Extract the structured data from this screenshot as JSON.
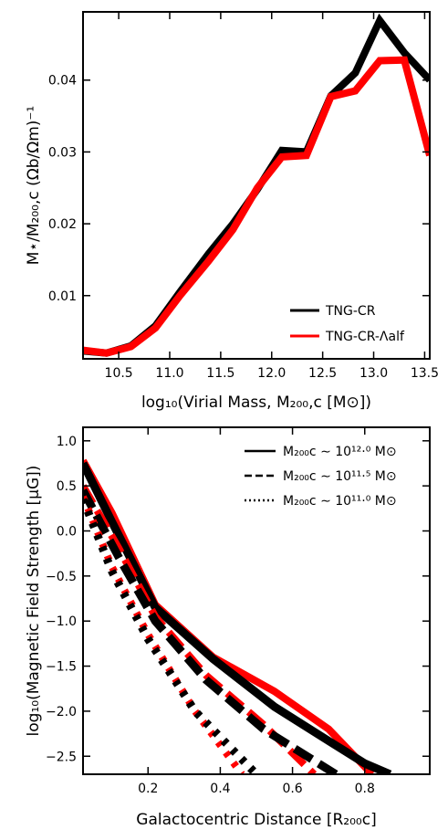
{
  "chart_data": [
    {
      "type": "line",
      "xlabel": "log₁₀(Virial Mass, M₂₀₀,c [M⊙])",
      "ylabel": "M⋆/M₂₀₀,c (Ωb/Ωm)⁻¹",
      "xlim": [
        10.15,
        13.55
      ],
      "ylim": [
        0.0012,
        0.0495
      ],
      "xticks": [
        "10.5",
        "11.0",
        "11.5",
        "12.0",
        "12.5",
        "13.0",
        "13.5"
      ],
      "yticks": [
        "0.01",
        "0.02",
        "0.03",
        "0.04"
      ],
      "legend_position": "lower-right",
      "grid": false,
      "series": [
        {
          "name": "TNG-CR",
          "color": "#000000",
          "x": [
            10.15,
            10.38,
            10.62,
            10.86,
            11.1,
            11.38,
            11.62,
            11.86,
            12.1,
            12.34,
            12.58,
            12.82,
            13.06,
            13.3,
            13.55
          ],
          "y": [
            0.0023,
            0.002,
            0.003,
            0.0058,
            0.0105,
            0.0158,
            0.02,
            0.0248,
            0.0302,
            0.03,
            0.0378,
            0.041,
            0.0483,
            0.0438,
            0.04
          ]
        },
        {
          "name": "TNG-CR-Λalf",
          "color": "#ff0000",
          "x": [
            10.15,
            10.38,
            10.62,
            10.86,
            11.1,
            11.38,
            11.62,
            11.86,
            12.1,
            12.34,
            12.58,
            12.82,
            13.06,
            13.3,
            13.55
          ],
          "y": [
            0.0024,
            0.002,
            0.0029,
            0.0055,
            0.01,
            0.0148,
            0.0192,
            0.025,
            0.0293,
            0.0295,
            0.0377,
            0.0385,
            0.0427,
            0.0428,
            0.0295
          ]
        }
      ]
    },
    {
      "type": "line",
      "xlabel": "Galactocentric Distance [R₂₀₀c]",
      "ylabel": "log₁₀(Magnetic Field Strength [μG])",
      "xlim": [
        0.02,
        0.98
      ],
      "ylim": [
        -2.7,
        1.15
      ],
      "xticks": [
        "0.2",
        "0.4",
        "0.6",
        "0.8"
      ],
      "yticks": [
        "1.0",
        "0.5",
        "0.0",
        "−0.5",
        "−1.0",
        "−1.5",
        "−2.0",
        "−2.5"
      ],
      "legend_position": "top-right",
      "grid": false,
      "legend": [
        {
          "label": "M₂₀₀c ∼ 10¹²·⁰ M⊙",
          "style": "solid"
        },
        {
          "label": "M₂₀₀c ∼ 10¹¹·⁵ M⊙",
          "style": "dashed"
        },
        {
          "label": "M₂₀₀c ∼ 10¹¹·⁰ M⊙",
          "style": "dotted"
        }
      ],
      "series": [
        {
          "color": "#ff0000",
          "style": "solid",
          "x": [
            0.02,
            0.1,
            0.22,
            0.38,
            0.55,
            0.7,
            0.82
          ],
          "y": [
            0.78,
            0.2,
            -0.82,
            -1.4,
            -1.78,
            -2.2,
            -2.7
          ]
        },
        {
          "color": "#000000",
          "style": "solid",
          "x": [
            0.02,
            0.1,
            0.22,
            0.38,
            0.55,
            0.7,
            0.8,
            0.87
          ],
          "y": [
            0.75,
            0.1,
            -0.85,
            -1.42,
            -1.95,
            -2.33,
            -2.58,
            -2.7
          ]
        },
        {
          "color": "#ff0000",
          "style": "dashed",
          "x": [
            0.02,
            0.12,
            0.22,
            0.36,
            0.52,
            0.66
          ],
          "y": [
            0.5,
            -0.2,
            -0.95,
            -1.6,
            -2.15,
            -2.7
          ]
        },
        {
          "color": "#000000",
          "style": "dashed",
          "x": [
            0.02,
            0.12,
            0.22,
            0.36,
            0.52,
            0.72
          ],
          "y": [
            0.45,
            -0.3,
            -1.0,
            -1.65,
            -2.2,
            -2.7
          ]
        },
        {
          "color": "#ff0000",
          "style": "dotted",
          "x": [
            0.02,
            0.1,
            0.2,
            0.33,
            0.46
          ],
          "y": [
            0.38,
            -0.4,
            -1.15,
            -2.0,
            -2.7
          ]
        },
        {
          "color": "#000000",
          "style": "dotted",
          "x": [
            0.02,
            0.1,
            0.2,
            0.33,
            0.5
          ],
          "y": [
            0.35,
            -0.45,
            -1.2,
            -2.0,
            -2.7
          ]
        }
      ]
    }
  ]
}
